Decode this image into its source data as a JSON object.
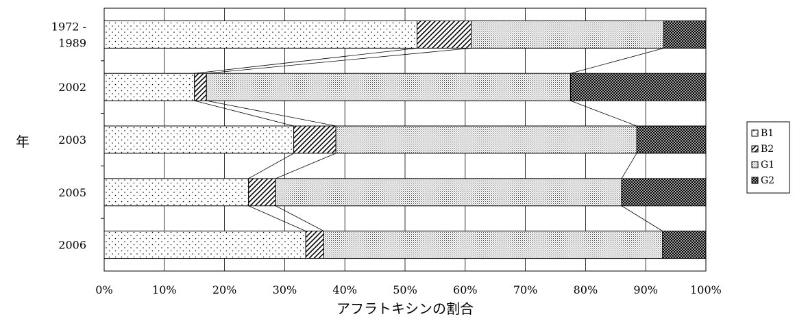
{
  "chart_data": {
    "type": "bar",
    "orientation": "horizontal",
    "stacked": "percent",
    "categories": [
      [
        "1972 -",
        "1989"
      ],
      [
        "2002"
      ],
      [
        "2003"
      ],
      [
        "2005"
      ],
      [
        "2006"
      ]
    ],
    "series": [
      {
        "name": "B1",
        "values": [
          52,
          15,
          31.5,
          24,
          33.5
        ],
        "pattern": "dots"
      },
      {
        "name": "B2",
        "values": [
          9,
          2,
          7,
          4.5,
          3
        ],
        "pattern": "diagonal"
      },
      {
        "name": "G1",
        "values": [
          32,
          60.5,
          50,
          57.5,
          56.3
        ],
        "pattern": "fine-dots"
      },
      {
        "name": "G2",
        "values": [
          7,
          22.5,
          11.5,
          14,
          7.2
        ],
        "pattern": "crosshatch"
      }
    ],
    "xlabel": "アフラトキシンの割合",
    "ylabel": "年",
    "xlim": [
      0,
      100
    ],
    "xticks": [
      "0%",
      "10%",
      "20%",
      "30%",
      "40%",
      "50%",
      "60%",
      "70%",
      "80%",
      "90%",
      "100%"
    ],
    "grid": true,
    "series_lines": true,
    "legend_position": "right"
  }
}
